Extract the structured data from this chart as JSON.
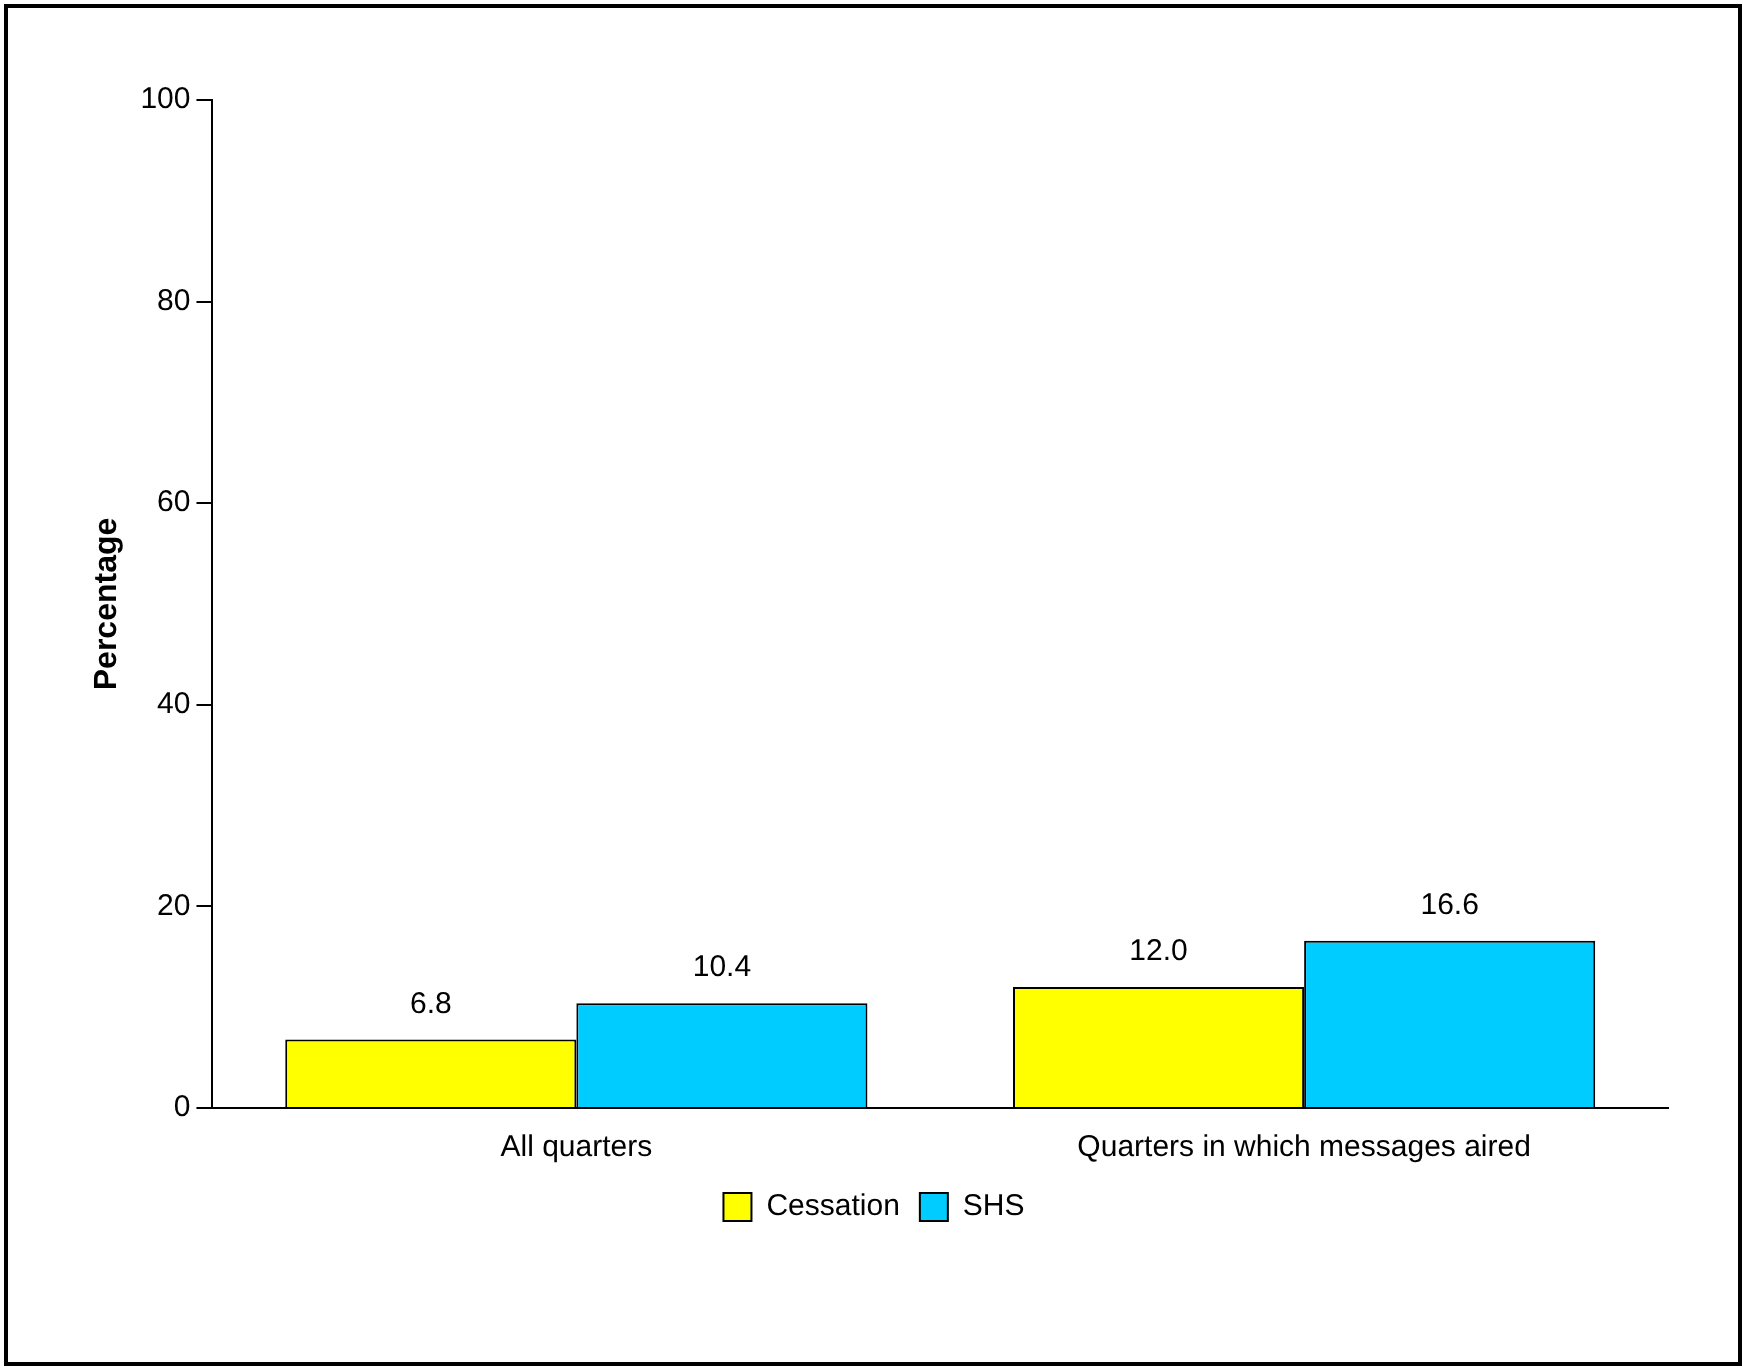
{
  "chart_data": {
    "type": "bar",
    "ylabel": "Percentage",
    "categories": [
      "All quarters",
      "Quarters in which messages aired"
    ],
    "series": [
      {
        "name": "Cessation",
        "color": "#ffff00",
        "values": [
          6.8,
          12.0
        ],
        "value_labels": [
          "6.8",
          "12.0"
        ]
      },
      {
        "name": "SHS",
        "color": "#00ccff",
        "values": [
          10.4,
          16.6
        ],
        "value_labels": [
          "10.4",
          "16.6"
        ]
      }
    ],
    "ylim": [
      0,
      100
    ],
    "yticks": [
      0,
      20,
      40,
      60,
      80,
      100
    ],
    "grid": false,
    "legend": "bottom"
  }
}
